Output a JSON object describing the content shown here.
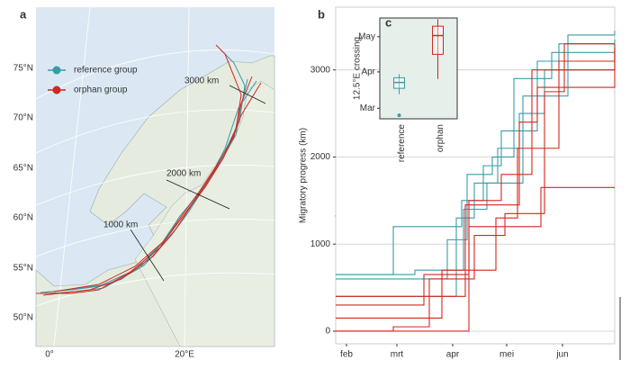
{
  "map": {
    "panel_label": "a",
    "lat_labels": [
      "75°N",
      "70°N",
      "65°N",
      "60°N",
      "55°N",
      "50°N"
    ],
    "lon_labels": [
      "0°",
      "20°E"
    ],
    "distance_labels": [
      "1000 km",
      "2000 km",
      "3000 km"
    ],
    "legend": [
      {
        "name": "reference group",
        "color": "#3a9aa8"
      },
      {
        "name": "orphan group",
        "color": "#d3271d"
      }
    ]
  },
  "chart_data": [
    {
      "type": "line",
      "panel_label": "b",
      "y_label": "Migratory progress (km)",
      "xlim": [
        26,
        181
      ],
      "ylim": [
        -145,
        3720
      ],
      "xticks": [
        {
          "value": 32,
          "label": "feb"
        },
        {
          "value": 60,
          "label": "mrt"
        },
        {
          "value": 91,
          "label": "apr"
        },
        {
          "value": 121,
          "label": "mei"
        },
        {
          "value": 152,
          "label": "jun"
        }
      ],
      "yticks": [
        0,
        1000,
        2000,
        3000
      ],
      "grid": true,
      "series": [
        {
          "color": "#3a9aa8",
          "x": [
            26,
            58,
            96,
            108,
            118,
            138,
            150,
            181
          ],
          "values": [
            650,
            1200,
            1500,
            1900,
            2300,
            3100,
            3300,
            3350
          ]
        },
        {
          "color": "#3a9aa8",
          "x": [
            26,
            88,
            99,
            113,
            125,
            146,
            181
          ],
          "values": [
            600,
            1050,
            1800,
            2000,
            2900,
            3200,
            3300
          ]
        },
        {
          "color": "#3a9aa8",
          "x": [
            26,
            93,
            103,
            116,
            128,
            142,
            181
          ],
          "values": [
            400,
            1300,
            1700,
            2100,
            2500,
            3000,
            3250
          ]
        },
        {
          "color": "#3a9aa8",
          "x": [
            26,
            70,
            97,
            110,
            130,
            155,
            181
          ],
          "values": [
            650,
            700,
            1400,
            1700,
            2700,
            3400,
            3450
          ]
        },
        {
          "color": "#d3271d",
          "x": [
            26,
            58,
            78,
            103,
            120,
            142,
            153,
            181
          ],
          "values": [
            0,
            50,
            600,
            1100,
            1350,
            2750,
            3300,
            3300
          ]
        },
        {
          "color": "#d3271d",
          "x": [
            26,
            75,
            100,
            118,
            135,
            181
          ],
          "values": [
            300,
            650,
            1500,
            1800,
            3000,
            3200
          ]
        },
        {
          "color": "#d3271d",
          "x": [
            26,
            85,
            115,
            127,
            150,
            181
          ],
          "values": [
            150,
            700,
            1300,
            2100,
            3100,
            3250
          ]
        },
        {
          "color": "#d3271d",
          "x": [
            26,
            100,
            140,
            181
          ],
          "values": [
            0,
            1200,
            1650,
            1650
          ]
        },
        {
          "color": "#d3271d",
          "x": [
            26,
            98,
            128,
            138,
            181
          ],
          "values": [
            400,
            1450,
            2400,
            2800,
            3300
          ]
        }
      ]
    },
    {
      "type": "box",
      "panel_label": "c",
      "y_label": "12.5°E crossing",
      "categories": [
        "reference",
        "orphan"
      ],
      "colors": [
        "#3a9aa8",
        "#d3271d"
      ],
      "ylim": [
        51,
        137
      ],
      "yticks": [
        {
          "value": 60,
          "label": "Mar"
        },
        {
          "value": 91,
          "label": "Apr"
        },
        {
          "value": 121,
          "label": "May"
        }
      ],
      "boxes": [
        {
          "whisker_low": 72,
          "q1": 77,
          "median": 82,
          "q3": 86,
          "whisker_high": 89,
          "outliers": [
            54
          ]
        },
        {
          "whisker_low": 85,
          "q1": 106,
          "median": 122,
          "q3": 130,
          "whisker_high": 136,
          "outliers": []
        }
      ]
    }
  ]
}
